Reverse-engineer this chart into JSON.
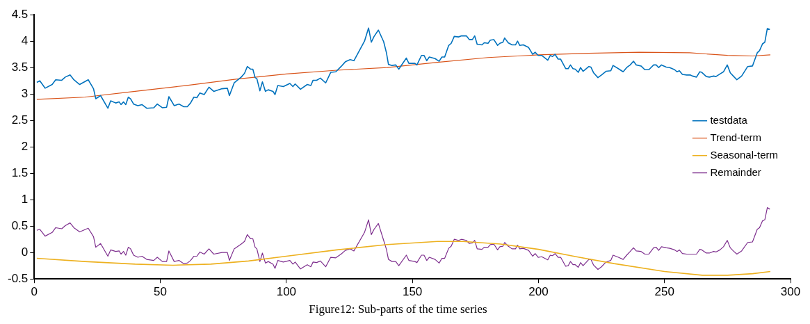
{
  "chart_data": {
    "type": "line",
    "title": "Figure12: Sub-parts of the time series",
    "xlim": [
      0,
      300
    ],
    "xticks": [
      0,
      50,
      100,
      150,
      200,
      250,
      300
    ],
    "ylim": [
      -0.5,
      4.5
    ],
    "yticks": [
      -0.5,
      0,
      0.5,
      1,
      1.5,
      2,
      2.5,
      3,
      3.5,
      4,
      4.5
    ],
    "grid": false,
    "legend": "right",
    "marker": "none",
    "line_style": "solid",
    "series": [
      {
        "name": "testdata",
        "color": "#0072bd",
        "x": [
          1,
          2.2,
          4.3,
          7.1,
          8.5,
          10.9,
          12.3,
          14.2,
          15.7,
          18,
          21.4,
          23.5,
          24.4,
          26.3,
          29.2,
          30.3,
          32.3,
          33.7,
          34.4,
          35.4,
          36.3,
          37.3,
          38.2,
          39.4,
          41.1,
          42.7,
          44.6,
          47.4,
          48.8,
          50.8,
          52.5,
          53.4,
          55.5,
          57.4,
          59.3,
          60.7,
          62,
          63.3,
          64.5,
          65.7,
          67.4,
          69.3,
          71.2,
          74.5,
          76.6,
          77.4,
          79.3,
          82.1,
          83.4,
          84.5,
          85.8,
          86.7,
          87.6,
          88.3,
          89.5,
          90.5,
          91.7,
          92.8,
          94.7,
          95.5,
          96.6,
          98.8,
          101.4,
          102.6,
          103.5,
          105.6,
          108.3,
          109.7,
          110.6,
          112,
          113.5,
          115.6,
          117.6,
          119.6,
          121.7,
          123.4,
          125.3,
          126.8,
          131,
          132.6,
          133.7,
          134.8,
          136.5,
          138.6,
          139.7,
          140.5,
          141.9,
          143.4,
          144.6,
          147.6,
          148.6,
          151,
          151.8,
          153.6,
          154.6,
          155.7,
          156.7,
          159,
          160.6,
          161.7,
          162.8,
          164.4,
          165.4,
          166.6,
          168.3,
          169.5,
          171.4,
          172.6,
          173.8,
          174.7,
          175.7,
          177.6,
          178.5,
          180,
          180.9,
          182.3,
          183.8,
          184.7,
          185.9,
          186.6,
          188,
          189.5,
          190.9,
          191.7,
          192.6,
          194,
          196.1,
          197.7,
          198.7,
          199.9,
          201.3,
          203.7,
          204.7,
          205.6,
          206.6,
          207.8,
          208.8,
          210.8,
          211.8,
          212.7,
          213.7,
          214.6,
          215.8,
          216.7,
          217.7,
          220,
          220.8,
          221.9,
          223.6,
          225,
          226.8,
          228.7,
          229.6,
          231.7,
          233.6,
          235,
          236.4,
          237.7,
          238.8,
          240.7,
          242.2,
          243.8,
          245.7,
          246.7,
          247.7,
          248.8,
          250.7,
          252.1,
          254,
          255,
          255.9,
          257.1,
          258.8,
          260.2,
          261.1,
          262.7,
          264,
          264.8,
          266.6,
          267.8,
          269.5,
          270.4,
          272,
          273.4,
          274.9,
          276.1,
          277.3,
          278.7,
          280.6,
          283,
          284.9,
          286.8,
          287.7,
          288.9,
          289.8,
          290.8,
          291.8
        ],
        "values": [
          3.22,
          3.25,
          3.11,
          3.18,
          3.27,
          3.26,
          3.32,
          3.36,
          3.27,
          3.18,
          3.27,
          3.1,
          2.91,
          2.97,
          2.73,
          2.87,
          2.83,
          2.85,
          2.8,
          2.85,
          2.8,
          2.94,
          2.91,
          2.81,
          2.78,
          2.8,
          2.73,
          2.74,
          2.81,
          2.74,
          2.75,
          2.95,
          2.78,
          2.81,
          2.76,
          2.76,
          2.83,
          2.94,
          2.93,
          3.02,
          2.99,
          3.13,
          3.05,
          3.1,
          3.11,
          2.97,
          3.21,
          3.32,
          3.39,
          3.52,
          3.47,
          3.47,
          3.31,
          3.29,
          3.06,
          3.23,
          3.05,
          3.08,
          3.05,
          2.99,
          3.16,
          3.14,
          3.2,
          3.14,
          3.19,
          3.09,
          3.18,
          3.16,
          3.26,
          3.26,
          3.3,
          3.21,
          3.41,
          3.42,
          3.52,
          3.61,
          3.65,
          3.63,
          4,
          4.25,
          3.98,
          4.09,
          4.21,
          3.99,
          3.78,
          3.56,
          3.54,
          3.55,
          3.47,
          3.68,
          3.58,
          3.58,
          3.55,
          3.73,
          3.73,
          3.63,
          3.7,
          3.67,
          3.62,
          3.7,
          3.7,
          3.92,
          3.96,
          4.09,
          4.08,
          4.1,
          4.1,
          4.03,
          4.03,
          4.1,
          3.94,
          3.93,
          3.97,
          3.96,
          4.02,
          4.03,
          3.92,
          3.96,
          3.98,
          4.06,
          3.97,
          3.93,
          3.93,
          4,
          3.92,
          3.93,
          3.88,
          3.75,
          3.79,
          3.73,
          3.73,
          3.64,
          3.73,
          3.71,
          3.75,
          3.66,
          3.66,
          3.48,
          3.48,
          3.55,
          3.48,
          3.47,
          3.41,
          3.5,
          3.43,
          3.52,
          3.51,
          3.4,
          3.31,
          3.36,
          3.43,
          3.44,
          3.54,
          3.48,
          3.42,
          3.5,
          3.55,
          3.62,
          3.55,
          3.53,
          3.46,
          3.46,
          3.55,
          3.55,
          3.5,
          3.55,
          3.51,
          3.5,
          3.46,
          3.42,
          3.44,
          3.37,
          3.36,
          3.36,
          3.34,
          3.32,
          3.42,
          3.41,
          3.33,
          3.32,
          3.34,
          3.33,
          3.38,
          3.42,
          3.55,
          3.4,
          3.34,
          3.27,
          3.34,
          3.52,
          3.53,
          3.78,
          3.82,
          3.95,
          3.98,
          4.24,
          4.22
        ]
      },
      {
        "name": "Trend-term",
        "color": "#d95319",
        "x": [
          1,
          20,
          40,
          60,
          80,
          100,
          120,
          140,
          160,
          180,
          200,
          220,
          240,
          260,
          275,
          285,
          292
        ],
        "values": [
          2.9,
          2.94,
          3.05,
          3.16,
          3.28,
          3.38,
          3.45,
          3.5,
          3.6,
          3.69,
          3.74,
          3.77,
          3.79,
          3.78,
          3.73,
          3.72,
          3.74
        ]
      },
      {
        "name": "Seasonal-term",
        "color": "#edb120",
        "x": [
          1,
          20,
          40,
          55,
          70,
          85,
          100,
          120,
          140,
          160,
          170,
          185,
          200,
          215,
          230,
          250,
          265,
          275,
          285,
          292
        ],
        "values": [
          -0.11,
          -0.17,
          -0.22,
          -0.24,
          -0.22,
          -0.16,
          -0.07,
          0.05,
          0.15,
          0.21,
          0.21,
          0.16,
          0.06,
          -0.08,
          -0.21,
          -0.36,
          -0.43,
          -0.43,
          -0.4,
          -0.36
        ]
      },
      {
        "name": "Remainder",
        "color": "#7e2f8e",
        "x": [
          1,
          2.2,
          4.3,
          7.1,
          8.5,
          10.9,
          12.3,
          14.2,
          15.7,
          18,
          21.4,
          23.5,
          24.4,
          26.3,
          29.2,
          30.3,
          32.3,
          33.7,
          34.4,
          35.4,
          36.3,
          37.3,
          38.2,
          39.4,
          41.1,
          42.7,
          44.6,
          47.4,
          48.8,
          50.8,
          52.5,
          53.4,
          55.5,
          57.4,
          59.3,
          60.7,
          62,
          63.3,
          64.5,
          65.7,
          67.4,
          69.3,
          71.2,
          74.5,
          76.6,
          77.4,
          79.3,
          82.1,
          83.4,
          84.5,
          85.8,
          86.7,
          87.6,
          88.3,
          89.5,
          90.5,
          91.7,
          92.8,
          94.7,
          95.5,
          96.6,
          98.8,
          101.4,
          102.6,
          103.5,
          105.6,
          108.3,
          109.7,
          110.6,
          112,
          113.5,
          115.6,
          117.6,
          119.6,
          121.7,
          123.4,
          125.3,
          126.8,
          131,
          132.6,
          133.7,
          134.8,
          136.5,
          138.6,
          139.7,
          140.5,
          141.9,
          143.4,
          144.6,
          147.6,
          148.6,
          151,
          151.8,
          153.6,
          154.6,
          155.7,
          156.7,
          159,
          160.6,
          161.7,
          162.8,
          164.4,
          165.4,
          166.6,
          168.3,
          169.5,
          171.4,
          172.6,
          173.8,
          174.7,
          175.7,
          177.6,
          178.5,
          180,
          180.9,
          182.3,
          183.8,
          184.7,
          185.9,
          186.6,
          188,
          189.5,
          190.9,
          191.7,
          192.6,
          194,
          196.1,
          197.7,
          198.7,
          199.9,
          201.3,
          203.7,
          204.7,
          205.6,
          206.6,
          207.8,
          208.8,
          210.8,
          211.8,
          212.7,
          213.7,
          214.6,
          215.8,
          216.7,
          217.7,
          220,
          220.8,
          221.9,
          223.6,
          225,
          226.8,
          228.7,
          229.6,
          231.7,
          233.6,
          235,
          236.4,
          237.7,
          238.8,
          240.7,
          242.2,
          243.8,
          245.7,
          246.7,
          247.7,
          248.8,
          250.7,
          252.1,
          254,
          255,
          255.9,
          257.1,
          258.8,
          260.2,
          261.1,
          262.7,
          264,
          264.8,
          266.6,
          267.8,
          269.5,
          270.4,
          272,
          273.4,
          274.9,
          276.1,
          277.3,
          278.7,
          280.6,
          283,
          284.9,
          286.8,
          287.7,
          288.9,
          289.8,
          290.8,
          291.8
        ],
        "values": [
          0.42,
          0.44,
          0.31,
          0.38,
          0.47,
          0.45,
          0.51,
          0.56,
          0.47,
          0.39,
          0.46,
          0.3,
          0.1,
          0.17,
          -0.07,
          0.05,
          0.02,
          0.03,
          -0.03,
          0.02,
          -0.05,
          0.1,
          0.07,
          -0.05,
          -0.09,
          -0.07,
          -0.13,
          -0.15,
          -0.09,
          -0.17,
          -0.17,
          0.03,
          -0.17,
          -0.15,
          -0.21,
          -0.2,
          -0.15,
          -0.07,
          -0.07,
          0.01,
          -0.03,
          0.07,
          -0.03,
          0,
          0,
          -0.15,
          0.07,
          0.16,
          0.21,
          0.34,
          0.26,
          0.26,
          0.1,
          0.07,
          -0.17,
          -0.01,
          -0.2,
          -0.17,
          -0.22,
          -0.3,
          -0.15,
          -0.18,
          -0.15,
          -0.22,
          -0.18,
          -0.31,
          -0.23,
          -0.27,
          -0.18,
          -0.19,
          -0.16,
          -0.27,
          -0.09,
          -0.1,
          -0.03,
          0.04,
          0.07,
          0.03,
          0.38,
          0.62,
          0.34,
          0.44,
          0.55,
          0.23,
          0.06,
          -0.13,
          -0.17,
          -0.17,
          -0.25,
          -0.05,
          -0.15,
          -0.17,
          -0.19,
          -0.05,
          -0.05,
          -0.15,
          -0.09,
          -0.13,
          -0.2,
          -0.11,
          -0.11,
          0.08,
          0.12,
          0.25,
          0.23,
          0.25,
          0.23,
          0.17,
          0.18,
          0.23,
          0.07,
          0.06,
          0.1,
          0.1,
          0.15,
          0.16,
          0.05,
          0.11,
          0.12,
          0.19,
          0.12,
          0.07,
          0.07,
          0.14,
          0.07,
          0.08,
          0.04,
          -0.07,
          -0.02,
          -0.09,
          -0.08,
          -0.14,
          -0.05,
          -0.06,
          -0.02,
          -0.09,
          -0.09,
          -0.26,
          -0.25,
          -0.17,
          -0.23,
          -0.23,
          -0.28,
          -0.19,
          -0.25,
          -0.13,
          -0.13,
          -0.24,
          -0.32,
          -0.27,
          -0.18,
          -0.15,
          -0.05,
          -0.09,
          -0.13,
          -0.05,
          0.02,
          0.09,
          0.03,
          0.02,
          -0.03,
          -0.03,
          0.09,
          0.1,
          0.04,
          0.11,
          0.09,
          0.08,
          0.05,
          0.02,
          0.05,
          -0.02,
          -0.03,
          -0.03,
          -0.03,
          -0.03,
          0.06,
          0.05,
          -0.01,
          -0.01,
          0.02,
          0.01,
          0.05,
          0.11,
          0.23,
          0.09,
          0.03,
          -0.03,
          0.03,
          0.19,
          0.2,
          0.44,
          0.47,
          0.6,
          0.62,
          0.85,
          0.82
        ]
      }
    ]
  }
}
